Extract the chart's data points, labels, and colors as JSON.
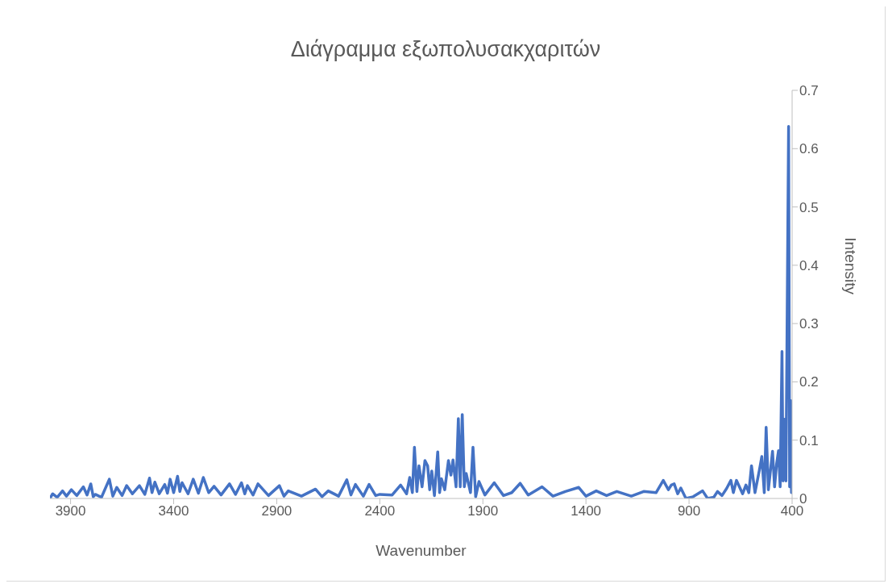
{
  "chart_data": {
    "type": "line",
    "title": "Διάγραμμα εξωπολυσακχαριτών",
    "xlabel": "Wavenumber",
    "ylabel": "Intensity",
    "xlim": [
      4000,
      400
    ],
    "xticks": [
      3900,
      3400,
      2900,
      2400,
      1900,
      1400,
      900,
      400
    ],
    "ylim": [
      0,
      0.7
    ],
    "yticks": [
      0,
      0.1,
      0.2,
      0.3,
      0.4,
      0.5,
      0.6,
      0.7
    ],
    "x": [
      4000,
      3987,
      3965,
      3939,
      3920,
      3896,
      3870,
      3838,
      3820,
      3802,
      3790,
      3780,
      3750,
      3712,
      3695,
      3676,
      3650,
      3628,
      3600,
      3566,
      3540,
      3517,
      3505,
      3491,
      3470,
      3443,
      3430,
      3417,
      3400,
      3381,
      3370,
      3359,
      3330,
      3305,
      3280,
      3256,
      3230,
      3204,
      3170,
      3129,
      3100,
      3071,
      3055,
      3042,
      3015,
      2991,
      2940,
      2887,
      2865,
      2844,
      2780,
      2712,
      2680,
      2650,
      2600,
      2560,
      2540,
      2518,
      2480,
      2452,
      2420,
      2400,
      2340,
      2299,
      2270,
      2255,
      2242,
      2232,
      2220,
      2210,
      2195,
      2181,
      2168,
      2158,
      2148,
      2135,
      2119,
      2110,
      2101,
      2085,
      2067,
      2055,
      2045,
      2030,
      2019,
      2010,
      2000,
      1990,
      1981,
      1960,
      1948,
      1935,
      1919,
      1890,
      1845,
      1800,
      1760,
      1719,
      1680,
      1613,
      1560,
      1500,
      1435,
      1400,
      1350,
      1300,
      1250,
      1180,
      1120,
      1060,
      1025,
      1000,
      986,
      972,
      955,
      940,
      915,
      880,
      834,
      810,
      780,
      762,
      740,
      718,
      697,
      685,
      670,
      640,
      624,
      610,
      597,
      580,
      558,
      547,
      535,
      526,
      515,
      495,
      485,
      475,
      466,
      458,
      449,
      444,
      438,
      430,
      417,
      412,
      407,
      403,
      400
    ],
    "series": [
      {
        "color": "#4472c4",
        "values": [
          0.0,
          0.008,
          0.002,
          0.013,
          0.004,
          0.015,
          0.005,
          0.02,
          0.006,
          0.025,
          0.003,
          0.007,
          0.002,
          0.033,
          0.004,
          0.019,
          0.005,
          0.022,
          0.008,
          0.022,
          0.007,
          0.035,
          0.01,
          0.028,
          0.008,
          0.024,
          0.009,
          0.033,
          0.01,
          0.038,
          0.012,
          0.027,
          0.008,
          0.033,
          0.009,
          0.036,
          0.01,
          0.021,
          0.006,
          0.025,
          0.007,
          0.027,
          0.008,
          0.022,
          0.006,
          0.025,
          0.005,
          0.022,
          0.004,
          0.013,
          0.004,
          0.016,
          0.003,
          0.013,
          0.004,
          0.032,
          0.006,
          0.024,
          0.004,
          0.024,
          0.005,
          0.007,
          0.006,
          0.023,
          0.008,
          0.036,
          0.01,
          0.088,
          0.012,
          0.056,
          0.02,
          0.065,
          0.056,
          0.015,
          0.047,
          0.005,
          0.08,
          0.01,
          0.034,
          0.015,
          0.065,
          0.04,
          0.066,
          0.02,
          0.137,
          0.02,
          0.144,
          0.02,
          0.043,
          0.01,
          0.088,
          0.003,
          0.029,
          0.006,
          0.027,
          0.005,
          0.01,
          0.026,
          0.006,
          0.02,
          0.004,
          0.012,
          0.019,
          0.004,
          0.013,
          0.005,
          0.012,
          0.004,
          0.012,
          0.01,
          0.031,
          0.015,
          0.023,
          0.025,
          0.008,
          0.018,
          0.0,
          0.003,
          0.013,
          0.0,
          0.002,
          0.012,
          0.005,
          0.017,
          0.031,
          0.01,
          0.031,
          0.008,
          0.023,
          0.01,
          0.056,
          0.01,
          0.05,
          0.072,
          0.01,
          0.122,
          0.015,
          0.081,
          0.02,
          0.06,
          0.082,
          0.02,
          0.252,
          0.03,
          0.136,
          0.03,
          0.638,
          0.02,
          0.168,
          0.01,
          0.032
        ]
      }
    ]
  }
}
